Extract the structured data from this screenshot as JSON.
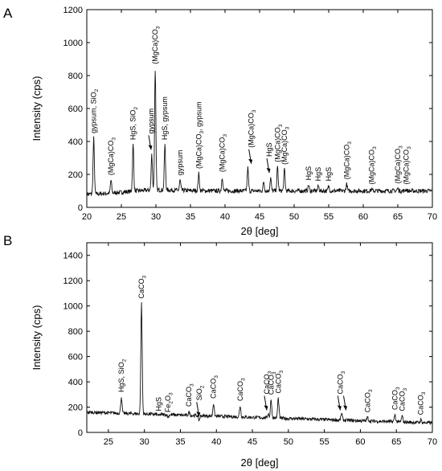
{
  "chart_data": [
    {
      "panel_label": "A",
      "type": "line",
      "xlabel": "2θ [deg]",
      "ylabel": "Intensity (cps)",
      "xlim": [
        20,
        70
      ],
      "ylim": [
        0,
        1200
      ],
      "xticks": [
        20,
        25,
        30,
        35,
        40,
        45,
        50,
        55,
        60,
        65,
        70
      ],
      "yticks": [
        0,
        200,
        400,
        600,
        800,
        1000,
        1200
      ],
      "baseline": 100,
      "peaks": [
        {
          "x": 21.0,
          "y": 420
        },
        {
          "x": 23.5,
          "y": 165
        },
        {
          "x": 26.7,
          "y": 380
        },
        {
          "x": 29.4,
          "y": 320
        },
        {
          "x": 29.9,
          "y": 840
        },
        {
          "x": 31.3,
          "y": 380
        },
        {
          "x": 33.5,
          "y": 165
        },
        {
          "x": 36.2,
          "y": 205
        },
        {
          "x": 39.6,
          "y": 185
        },
        {
          "x": 43.3,
          "y": 240
        },
        {
          "x": 45.6,
          "y": 155
        },
        {
          "x": 46.6,
          "y": 180
        },
        {
          "x": 47.6,
          "y": 245
        },
        {
          "x": 48.6,
          "y": 230
        },
        {
          "x": 52.1,
          "y": 135
        },
        {
          "x": 53.5,
          "y": 130
        },
        {
          "x": 55.0,
          "y": 130
        },
        {
          "x": 57.6,
          "y": 140
        },
        {
          "x": 61.2,
          "y": 110
        },
        {
          "x": 65.0,
          "y": 115
        },
        {
          "x": 66.2,
          "y": 110
        }
      ],
      "annotations": [
        {
          "x": 21.0,
          "y": 420,
          "label": "gypsum, SiO",
          "sub": "2",
          "arrow": false
        },
        {
          "x": 23.5,
          "y": 165,
          "label": "(MgCa)CO",
          "sub": "3",
          "arrow": false
        },
        {
          "x": 26.7,
          "y": 380,
          "label": "HgS, SiO",
          "sub": "2",
          "arrow": false
        },
        {
          "x": 29.3,
          "y": 330,
          "label": "gypsum",
          "sub": "",
          "arrow": true
        },
        {
          "x": 29.9,
          "y": 840,
          "label": "(MgCa)CO",
          "sub": "3",
          "arrow": false
        },
        {
          "x": 31.3,
          "y": 380,
          "label": "HgS, gypsum",
          "sub": "",
          "arrow": false
        },
        {
          "x": 33.5,
          "y": 165,
          "label": "gypsum",
          "sub": "",
          "arrow": false
        },
        {
          "x": 36.2,
          "y": 205,
          "label": "(MgCa)CO",
          "sub": "3",
          "label2": ", gypsum",
          "arrow": false
        },
        {
          "x": 39.6,
          "y": 185,
          "label": "(MgCa)CO",
          "sub": "3",
          "arrow": false
        },
        {
          "x": 43.8,
          "y": 245,
          "label": "(MgCa)CO",
          "sub": "3",
          "arrow": true
        },
        {
          "x": 46.4,
          "y": 190,
          "label": "HgS",
          "sub": "",
          "arrow": true
        },
        {
          "x": 47.6,
          "y": 245,
          "label": "(MgCa)CO",
          "sub": "3",
          "arrow": false
        },
        {
          "x": 48.6,
          "y": 230,
          "label": "(MgCa)CO",
          "sub": "3",
          "arrow": false
        },
        {
          "x": 52.1,
          "y": 135,
          "label": "HgS",
          "sub": "",
          "arrow": false
        },
        {
          "x": 53.5,
          "y": 130,
          "label": "HgS",
          "sub": "",
          "arrow": false
        },
        {
          "x": 55.0,
          "y": 130,
          "label": "HgS",
          "sub": "",
          "arrow": false
        },
        {
          "x": 57.6,
          "y": 140,
          "label": "(MgCa)CO",
          "sub": "3",
          "arrow": false
        },
        {
          "x": 61.2,
          "y": 110,
          "label": "(MgCa)CO",
          "sub": "3",
          "arrow": false
        },
        {
          "x": 65.0,
          "y": 115,
          "label": "(MgCa)CO",
          "sub": "3",
          "arrow": false
        },
        {
          "x": 66.2,
          "y": 110,
          "label": "(MgCa)CO",
          "sub": "3",
          "arrow": false
        }
      ]
    },
    {
      "panel_label": "B",
      "type": "line",
      "xlabel": "2θ [deg]",
      "ylabel": "Intensity (cps)",
      "xlim": [
        22,
        70
      ],
      "ylim": [
        0,
        1500
      ],
      "xticks": [
        25,
        30,
        35,
        40,
        45,
        50,
        55,
        60,
        65,
        70
      ],
      "yticks": [
        0,
        200,
        400,
        600,
        800,
        1000,
        1200,
        1400
      ],
      "baseline_start": 160,
      "baseline_end": 75,
      "peaks": [
        {
          "x": 26.8,
          "y": 280
        },
        {
          "x": 29.6,
          "y": 1020
        },
        {
          "x": 32.0,
          "y": 130
        },
        {
          "x": 33.3,
          "y": 120
        },
        {
          "x": 36.2,
          "y": 160
        },
        {
          "x": 37.6,
          "y": 95
        },
        {
          "x": 39.6,
          "y": 230
        },
        {
          "x": 43.3,
          "y": 210
        },
        {
          "x": 47.2,
          "y": 150
        },
        {
          "x": 47.6,
          "y": 260
        },
        {
          "x": 48.6,
          "y": 270
        },
        {
          "x": 57.4,
          "y": 150
        },
        {
          "x": 61.0,
          "y": 120
        },
        {
          "x": 64.8,
          "y": 140
        },
        {
          "x": 65.8,
          "y": 130
        },
        {
          "x": 68.4,
          "y": 100
        }
      ],
      "annotations": [
        {
          "x": 26.8,
          "y": 280,
          "label": "HgS, SiO",
          "sub": "2",
          "arrow": false
        },
        {
          "x": 29.6,
          "y": 1020,
          "label": "CaCO",
          "sub": "3",
          "arrow": false
        },
        {
          "x": 32.0,
          "y": 130,
          "label": "HgS",
          "sub": "",
          "arrow": false
        },
        {
          "x": 33.3,
          "y": 120,
          "label": "Fe",
          "sub": "2",
          "label2": "O",
          "sub2": "3",
          "arrow": false
        },
        {
          "x": 36.2,
          "y": 165,
          "label": "CaCO",
          "sub": "3",
          "arrow": false
        },
        {
          "x": 37.6,
          "y": 100,
          "label": "SiO",
          "sub": "2",
          "arrow": true
        },
        {
          "x": 39.6,
          "y": 230,
          "label": "CaCO",
          "sub": "3",
          "arrow": false
        },
        {
          "x": 43.3,
          "y": 210,
          "label": "CaCO",
          "sub": "3",
          "arrow": false
        },
        {
          "x": 47.0,
          "y": 150,
          "label": "CaCO",
          "sub": "3",
          "arrow": true
        },
        {
          "x": 47.6,
          "y": 260,
          "label": "CaCO",
          "sub": "3",
          "arrow": false
        },
        {
          "x": 48.6,
          "y": 270,
          "label": "CaCO",
          "sub": "3",
          "arrow": false
        },
        {
          "x": 57.2,
          "y": 150,
          "label": "CaCO",
          "sub": "3",
          "arrow": true
        },
        {
          "x": 58.0,
          "y": 150,
          "label": "",
          "sub": "",
          "arrow": true
        },
        {
          "x": 61.0,
          "y": 120,
          "label": "CaCO",
          "sub": "3",
          "arrow": false
        },
        {
          "x": 64.8,
          "y": 140,
          "label": "CaCO",
          "sub": "3",
          "arrow": false
        },
        {
          "x": 65.8,
          "y": 130,
          "label": "CaCO",
          "sub": "3",
          "arrow": false
        },
        {
          "x": 68.4,
          "y": 100,
          "label": "CaCO",
          "sub": "3",
          "arrow": false
        }
      ]
    }
  ]
}
